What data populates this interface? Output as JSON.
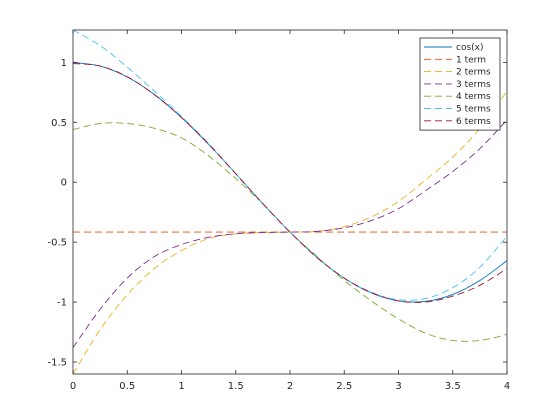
{
  "chart_data": {
    "type": "line",
    "title": "",
    "xlabel": "",
    "ylabel": "",
    "xlim": [
      0,
      4
    ],
    "ylim": [
      -1.6,
      1.27
    ],
    "xticks": [
      0,
      0.5,
      1,
      1.5,
      2,
      2.5,
      3,
      3.5,
      4
    ],
    "xtick_labels": [
      "0",
      "0.5",
      "1",
      "1.5",
      "2",
      "2.5",
      "3",
      "3.5",
      "4"
    ],
    "yticks": [
      -1.5,
      -1,
      -0.5,
      0,
      0.5,
      1
    ],
    "ytick_labels": [
      "-1.5",
      "-1",
      "-0.5",
      "0",
      "0.5",
      "1"
    ],
    "grid": false,
    "legend_position": "top-right",
    "x": [
      0,
      0.25,
      0.5,
      0.75,
      1,
      1.25,
      1.5,
      1.75,
      2,
      2.25,
      2.5,
      2.75,
      3,
      3.25,
      3.5,
      3.75,
      4
    ],
    "series": [
      {
        "name": "cos(x)",
        "style": "solid",
        "color": "#0072BD",
        "values": [
          1.0,
          0.969,
          0.878,
          0.732,
          0.54,
          0.315,
          0.071,
          -0.178,
          -0.416,
          -0.628,
          -0.801,
          -0.924,
          -0.99,
          -0.994,
          -0.936,
          -0.82,
          -0.654
        ]
      },
      {
        "name": "1 term",
        "style": "dashed",
        "color": "#D95319",
        "values": [
          -0.416,
          -0.416,
          -0.416,
          -0.416,
          -0.416,
          -0.416,
          -0.416,
          -0.416,
          -0.416,
          -0.416,
          -0.416,
          -0.416,
          -0.416,
          -0.416,
          -0.416,
          -0.416,
          -0.416
        ]
      },
      {
        "name": "2 terms",
        "style": "dashed",
        "color": "#EDB120",
        "values": [
          -1.6,
          -1.23,
          -0.94,
          -0.72,
          -0.57,
          -0.47,
          -0.43,
          -0.42,
          -0.416,
          -0.41,
          -0.37,
          -0.29,
          -0.16,
          0.02,
          0.21,
          0.45,
          0.76
        ]
      },
      {
        "name": "3 terms",
        "style": "dashed",
        "color": "#7E2F8E",
        "values": [
          -1.38,
          -1.06,
          -0.8,
          -0.62,
          -0.52,
          -0.46,
          -0.43,
          -0.42,
          -0.416,
          -0.41,
          -0.38,
          -0.32,
          -0.22,
          -0.07,
          0.09,
          0.28,
          0.52
        ]
      },
      {
        "name": "4 terms",
        "style": "dashed",
        "color": "#77AC30",
        "values": [
          0.44,
          0.49,
          0.49,
          0.45,
          0.37,
          0.22,
          0.03,
          -0.18,
          -0.416,
          -0.62,
          -0.82,
          -0.99,
          -1.14,
          -1.26,
          -1.32,
          -1.32,
          -1.27
        ]
      },
      {
        "name": "5 terms",
        "style": "dashed",
        "color": "#4DBEEE",
        "values": [
          1.27,
          1.14,
          0.96,
          0.76,
          0.55,
          0.32,
          0.07,
          -0.18,
          -0.416,
          -0.63,
          -0.8,
          -0.92,
          -0.98,
          -0.97,
          -0.88,
          -0.71,
          -0.45
        ]
      },
      {
        "name": "6 terms",
        "style": "dashed",
        "color": "#A2142F",
        "values": [
          0.99,
          0.97,
          0.88,
          0.73,
          0.54,
          0.32,
          0.07,
          -0.18,
          -0.416,
          -0.63,
          -0.8,
          -0.92,
          -0.99,
          -1.0,
          -0.95,
          -0.86,
          -0.72
        ]
      }
    ]
  }
}
